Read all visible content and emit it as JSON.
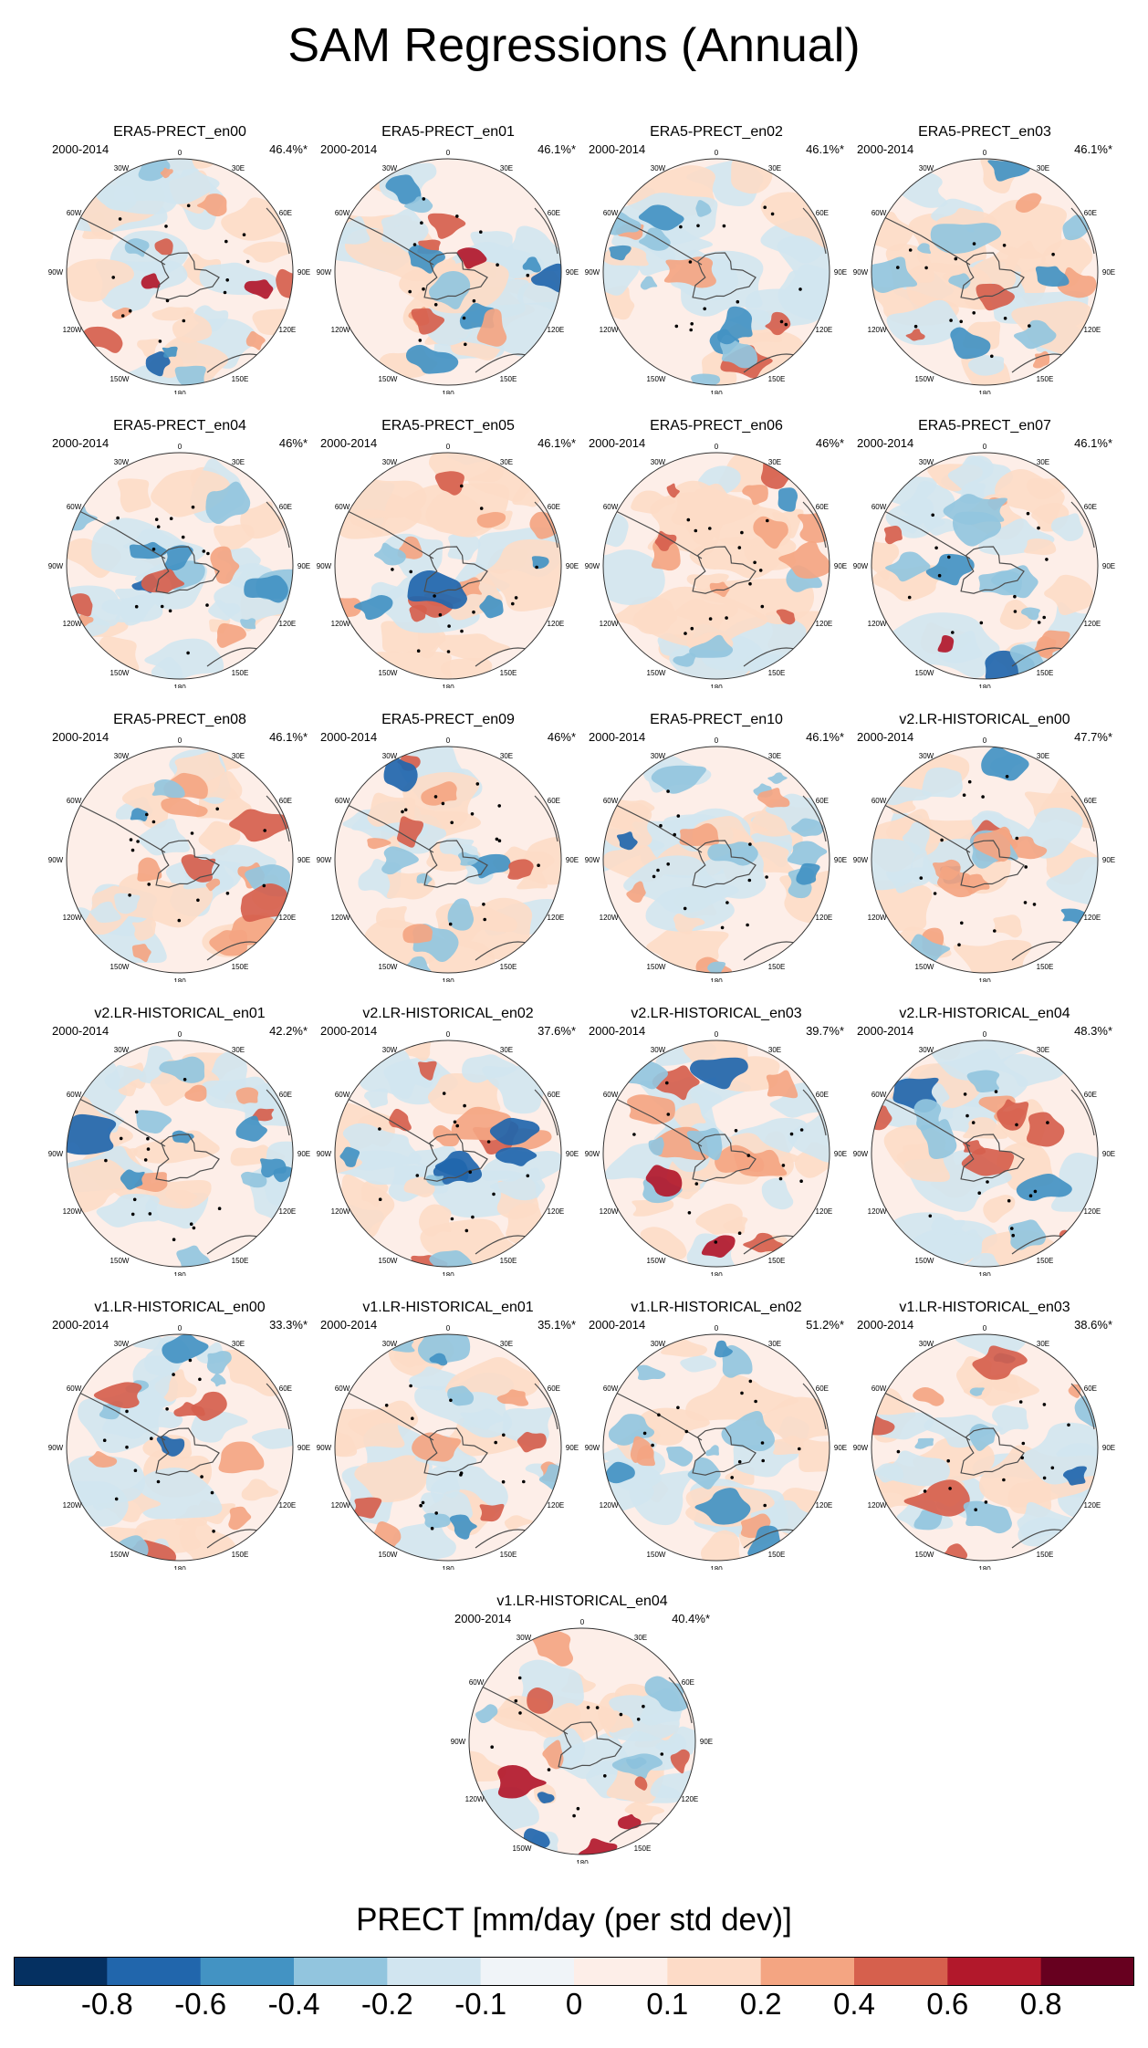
{
  "title": "SAM Regressions (Annual)",
  "colors": {
    "scale": [
      "#053061",
      "#2166ac",
      "#4393c3",
      "#92c5de",
      "#d1e5f0",
      "#f0f4f8",
      "#fdeee8",
      "#fddbc7",
      "#f4a582",
      "#d6604d",
      "#b2182b",
      "#67001f"
    ],
    "land_outline": "#4d4d4d",
    "significance_marker": "#000000"
  },
  "colorbar": {
    "title": "PRECT [mm/day (per std dev)]",
    "ticks": [
      "-0.8",
      "-0.6",
      "-0.4",
      "-0.2",
      "-0.1",
      "0",
      "0.1",
      "0.2",
      "0.4",
      "0.6",
      "0.8"
    ]
  },
  "map_labels": {
    "top": "0",
    "upper_left": "30W",
    "upper_right": "30E",
    "left_upper": "60W",
    "right_upper": "60E",
    "left": "90W",
    "right": "90E",
    "left_lower": "120W",
    "right_lower": "120E",
    "bottom_left": "150W",
    "bottom_right": "150E",
    "bottom": "180"
  },
  "chart_data": [
    {
      "type": "heatmap",
      "title": "ERA5-PRECT_en00",
      "period": "2000-2014",
      "variance_explained": "46.4%*"
    },
    {
      "type": "heatmap",
      "title": "ERA5-PRECT_en01",
      "period": "2000-2014",
      "variance_explained": "46.1%*"
    },
    {
      "type": "heatmap",
      "title": "ERA5-PRECT_en02",
      "period": "2000-2014",
      "variance_explained": "46.1%*"
    },
    {
      "type": "heatmap",
      "title": "ERA5-PRECT_en03",
      "period": "2000-2014",
      "variance_explained": "46.1%*"
    },
    {
      "type": "heatmap",
      "title": "ERA5-PRECT_en04",
      "period": "2000-2014",
      "variance_explained": "46%*"
    },
    {
      "type": "heatmap",
      "title": "ERA5-PRECT_en05",
      "period": "2000-2014",
      "variance_explained": "46.1%*"
    },
    {
      "type": "heatmap",
      "title": "ERA5-PRECT_en06",
      "period": "2000-2014",
      "variance_explained": "46%*"
    },
    {
      "type": "heatmap",
      "title": "ERA5-PRECT_en07",
      "period": "2000-2014",
      "variance_explained": "46.1%*"
    },
    {
      "type": "heatmap",
      "title": "ERA5-PRECT_en08",
      "period": "2000-2014",
      "variance_explained": "46.1%*"
    },
    {
      "type": "heatmap",
      "title": "ERA5-PRECT_en09",
      "period": "2000-2014",
      "variance_explained": "46%*"
    },
    {
      "type": "heatmap",
      "title": "ERA5-PRECT_en10",
      "period": "2000-2014",
      "variance_explained": "46.1%*"
    },
    {
      "type": "heatmap",
      "title": "v2.LR-HISTORICAL_en00",
      "period": "2000-2014",
      "variance_explained": "47.7%*"
    },
    {
      "type": "heatmap",
      "title": "v2.LR-HISTORICAL_en01",
      "period": "2000-2014",
      "variance_explained": "42.2%*"
    },
    {
      "type": "heatmap",
      "title": "v2.LR-HISTORICAL_en02",
      "period": "2000-2014",
      "variance_explained": "37.6%*"
    },
    {
      "type": "heatmap",
      "title": "v2.LR-HISTORICAL_en03",
      "period": "2000-2014",
      "variance_explained": "39.7%*"
    },
    {
      "type": "heatmap",
      "title": "v2.LR-HISTORICAL_en04",
      "period": "2000-2014",
      "variance_explained": "48.3%*"
    },
    {
      "type": "heatmap",
      "title": "v1.LR-HISTORICAL_en00",
      "period": "2000-2014",
      "variance_explained": "33.3%*"
    },
    {
      "type": "heatmap",
      "title": "v1.LR-HISTORICAL_en01",
      "period": "2000-2014",
      "variance_explained": "35.1%*"
    },
    {
      "type": "heatmap",
      "title": "v1.LR-HISTORICAL_en02",
      "period": "2000-2014",
      "variance_explained": "51.2%*"
    },
    {
      "type": "heatmap",
      "title": "v1.LR-HISTORICAL_en03",
      "period": "2000-2014",
      "variance_explained": "38.6%*"
    },
    {
      "type": "heatmap",
      "title": "v1.LR-HISTORICAL_en04",
      "period": "2000-2014",
      "variance_explained": "40.4%*"
    }
  ]
}
